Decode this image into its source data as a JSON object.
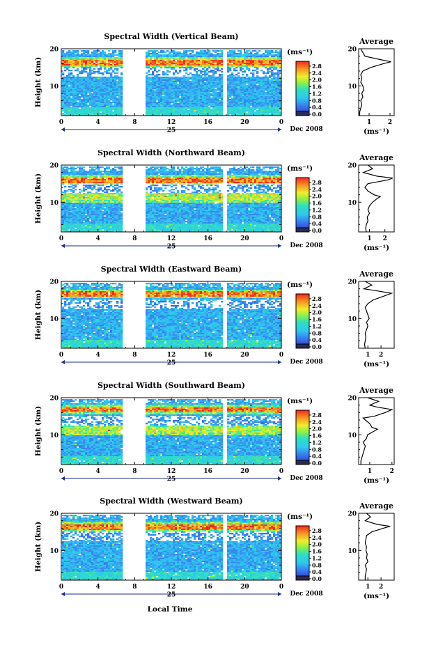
{
  "figure": {
    "x_axis_title": "Local Time",
    "date_label": "Dec 2008",
    "day_label": "25",
    "y_axis_title": "Height (km)",
    "colorbar_unit": "(ms⁻¹)",
    "average_title": "Average",
    "average_unit": "(ms⁻¹)"
  },
  "chart_data": [
    {
      "type": "heatmap",
      "title": "Spectral Width (Vertical Beam)",
      "xlabel": "",
      "ylabel": "Height (km)",
      "xlim": [
        0,
        24
      ],
      "ylim": [
        2,
        20
      ],
      "x_ticks": [
        "0",
        "4",
        "8",
        "12",
        "16",
        "20",
        "0"
      ],
      "y_ticks": [
        "10",
        "20"
      ],
      "data_gaps_hours": [
        [
          6.6,
          9.1
        ],
        [
          17.6,
          17.9
        ]
      ],
      "colorbar": {
        "unit": "(ms⁻¹)",
        "ticks": [
          "0.0",
          "0.4",
          "0.8",
          "1.2",
          "1.6",
          "2.0",
          "2.4",
          "2.8"
        ],
        "range": [
          0,
          3.0
        ]
      },
      "high_width_layers_km": [
        16.5
      ],
      "average_profile": {
        "title": "Average",
        "xlabel": "(ms⁻¹)",
        "x_ticks": [
          "1",
          "2"
        ],
        "xlim": [
          0.5,
          2.2
        ],
        "height_km": [
          2,
          3,
          4,
          5,
          6,
          7,
          8,
          9,
          10,
          11,
          12,
          13,
          14,
          15,
          16,
          16.5,
          17,
          18,
          19,
          20
        ],
        "value": [
          0.55,
          0.55,
          0.6,
          0.65,
          0.6,
          0.7,
          0.65,
          0.75,
          0.7,
          0.6,
          0.65,
          0.6,
          0.7,
          1.1,
          1.7,
          2.05,
          1.6,
          0.8,
          0.7,
          0.6
        ]
      }
    },
    {
      "type": "heatmap",
      "title": "Spectral Width (Northward Beam)",
      "xlabel": "",
      "ylabel": "Height (km)",
      "xlim": [
        0,
        24
      ],
      "ylim": [
        2,
        20
      ],
      "x_ticks": [
        "0",
        "4",
        "8",
        "12",
        "16",
        "20",
        "0"
      ],
      "y_ticks": [
        "10",
        "20"
      ],
      "data_gaps_hours": [
        [
          6.6,
          9.1
        ],
        [
          17.6,
          17.9
        ]
      ],
      "colorbar": {
        "unit": "(ms⁻¹)",
        "ticks": [
          "0.0",
          "0.4",
          "0.8",
          "1.2",
          "1.6",
          "2.0",
          "2.4",
          "2.8"
        ],
        "range": [
          0,
          3.0
        ]
      },
      "high_width_layers_km": [
        16.2,
        11.5
      ],
      "average_profile": {
        "title": "Average",
        "xlabel": "(ms⁻¹)",
        "x_ticks": [
          "1",
          "2"
        ],
        "xlim": [
          0.3,
          2.6
        ],
        "height_km": [
          2,
          3,
          4,
          5,
          6,
          7,
          8,
          9,
          10,
          11,
          11.5,
          12,
          13,
          14,
          15,
          16,
          16.5,
          17,
          18,
          19,
          20
        ],
        "value": [
          0.8,
          0.75,
          0.8,
          0.9,
          0.85,
          1.0,
          0.9,
          1.0,
          1.2,
          1.5,
          1.7,
          1.3,
          0.9,
          0.7,
          0.9,
          2.2,
          2.5,
          1.5,
          0.6,
          1.2,
          0.9
        ]
      }
    },
    {
      "type": "heatmap",
      "title": "Spectral Width (Eastward Beam)",
      "xlabel": "",
      "ylabel": "Height (km)",
      "xlim": [
        0,
        24
      ],
      "ylim": [
        2,
        20
      ],
      "x_ticks": [
        "0",
        "4",
        "8",
        "12",
        "16",
        "20",
        "0"
      ],
      "y_ticks": [
        "10",
        "20"
      ],
      "data_gaps_hours": [
        [
          6.6,
          9.1
        ],
        [
          17.6,
          17.9
        ]
      ],
      "colorbar": {
        "unit": "(ms⁻¹)",
        "ticks": [
          "0.0",
          "0.4",
          "0.8",
          "1.2",
          "1.6",
          "2.0",
          "2.4",
          "2.8"
        ],
        "range": [
          0,
          3.0
        ]
      },
      "high_width_layers_km": [
        16.8
      ],
      "average_profile": {
        "title": "Average",
        "xlabel": "(ms⁻¹)",
        "x_ticks": [
          "1",
          "2"
        ],
        "xlim": [
          0.3,
          3.0
        ],
        "height_km": [
          2,
          3,
          4,
          5,
          6,
          7,
          8,
          9,
          10,
          11,
          12,
          13,
          14,
          15,
          16,
          16.8,
          17.5,
          18,
          19,
          20
        ],
        "value": [
          0.8,
          0.75,
          0.8,
          0.85,
          0.8,
          0.9,
          1.0,
          0.9,
          1.1,
          1.0,
          0.9,
          0.8,
          1.0,
          1.4,
          2.2,
          2.8,
          1.6,
          0.7,
          1.3,
          0.8
        ]
      }
    },
    {
      "type": "heatmap",
      "title": "Spectral Width (Southward Beam)",
      "xlabel": "",
      "ylabel": "Height (km)",
      "xlim": [
        0,
        24
      ],
      "ylim": [
        2,
        20
      ],
      "x_ticks": [
        "0",
        "4",
        "8",
        "12",
        "16",
        "20",
        "0"
      ],
      "y_ticks": [
        "10",
        "20"
      ],
      "data_gaps_hours": [
        [
          6.5,
          9.1
        ],
        [
          17.6,
          17.9
        ]
      ],
      "colorbar": {
        "unit": "(ms⁻¹)",
        "ticks": [
          "0.0",
          "0.4",
          "0.8",
          "1.2",
          "1.6",
          "2.0",
          "2.4",
          "2.8"
        ],
        "range": [
          0,
          3.0
        ]
      },
      "high_width_layers_km": [
        17.0,
        11.5
      ],
      "average_profile": {
        "title": "Average",
        "xlabel": "(ms⁻¹)",
        "x_ticks": [
          "1",
          "2"
        ],
        "xlim": [
          0.5,
          2.1
        ],
        "height_km": [
          2,
          3,
          4,
          5,
          6,
          7,
          8,
          9,
          10,
          11,
          11.5,
          12,
          13,
          14,
          14.5,
          15,
          16,
          16.8,
          17.5,
          18,
          19,
          20
        ],
        "value": [
          0.6,
          0.6,
          0.65,
          0.7,
          0.75,
          0.8,
          0.7,
          0.85,
          0.9,
          1.2,
          1.35,
          1.1,
          1.0,
          0.8,
          0.7,
          1.2,
          1.7,
          2.0,
          1.3,
          1.0,
          1.4,
          0.9
        ]
      }
    },
    {
      "type": "heatmap",
      "title": "Spectral Width (Westward Beam)",
      "xlabel": "Local Time",
      "ylabel": "Height (km)",
      "xlim": [
        0,
        24
      ],
      "ylim": [
        2,
        20
      ],
      "x_ticks": [
        "0",
        "4",
        "8",
        "12",
        "16",
        "20",
        "0"
      ],
      "y_ticks": [
        "10",
        "20"
      ],
      "data_gaps_hours": [
        [
          6.6,
          9.1
        ],
        [
          17.6,
          17.9
        ]
      ],
      "colorbar": {
        "unit": "(ms⁻¹)",
        "ticks": [
          "0.0",
          "0.4",
          "0.8",
          "1.2",
          "1.6",
          "2.0",
          "2.4",
          "2.8"
        ],
        "range": [
          0,
          3.0
        ]
      },
      "high_width_layers_km": [
        16.5
      ],
      "average_profile": {
        "title": "Average",
        "xlabel": "(ms⁻¹)",
        "x_ticks": [
          "1",
          "2"
        ],
        "xlim": [
          0.3,
          3.0
        ],
        "height_km": [
          2,
          3,
          4,
          5,
          6,
          7,
          8,
          9,
          10,
          11,
          12,
          13,
          14,
          15,
          16,
          16.5,
          17,
          18,
          19,
          20
        ],
        "value": [
          0.8,
          0.8,
          0.85,
          0.9,
          0.8,
          1.0,
          0.9,
          0.95,
          0.85,
          0.9,
          0.8,
          0.85,
          0.9,
          1.3,
          2.2,
          2.7,
          1.7,
          0.8,
          1.2,
          0.9
        ]
      }
    }
  ]
}
